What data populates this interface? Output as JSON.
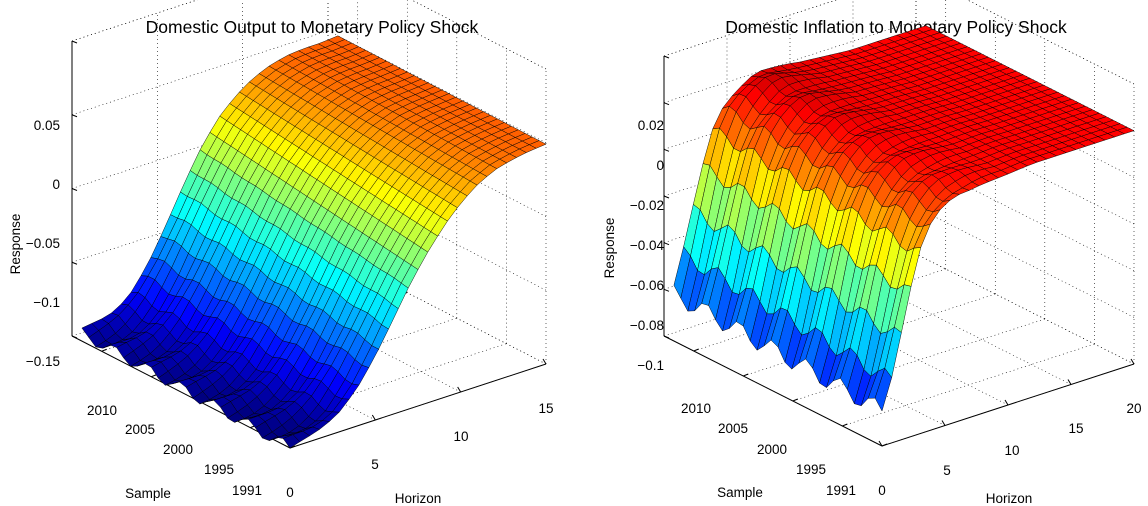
{
  "chart_data": [
    {
      "type": "surface",
      "title": "Domestic Output to Monetary Policy Shock",
      "xlabel": "Horizon",
      "ylabel": "Sample",
      "zlabel": "Response",
      "xticks": [
        "0",
        "5",
        "10",
        "15"
      ],
      "yticks": [
        "1991",
        "1995",
        "2000",
        "2005",
        "2010"
      ],
      "zticks": [
        "−0.15",
        "−0.1",
        "−0.05",
        "0",
        "0.05"
      ],
      "xlim": [
        0,
        15
      ],
      "ylim": [
        1991,
        2013
      ],
      "zlim": [
        -0.15,
        0.05
      ],
      "colormap": "jet",
      "grid": true,
      "horizon": [
        0,
        1,
        2,
        3,
        4,
        5,
        6,
        7,
        8,
        9,
        10,
        11,
        12,
        13,
        14,
        15
      ],
      "response_profile_early_sample": [
        -0.15,
        -0.149,
        -0.146,
        -0.138,
        -0.124,
        -0.106,
        -0.086,
        -0.066,
        -0.049,
        -0.034,
        -0.022,
        -0.013,
        -0.007,
        -0.004,
        -0.002,
        -0.001
      ],
      "response_profile_late_sample": [
        -0.145,
        -0.143,
        -0.138,
        -0.126,
        -0.108,
        -0.087,
        -0.065,
        -0.045,
        -0.029,
        -0.018,
        -0.01,
        -0.005,
        -0.002,
        -0.001,
        -0.001,
        0.0
      ]
    },
    {
      "type": "surface",
      "title": "Domestic Inflation to Monetary Policy Shock",
      "xlabel": "Horizon",
      "ylabel": "Sample",
      "zlabel": "Response",
      "xticks": [
        "0",
        "5",
        "10",
        "15",
        "20"
      ],
      "yticks": [
        "1991",
        "1995",
        "2000",
        "2005",
        "2010"
      ],
      "zticks": [
        "−0.1",
        "−0.08",
        "−0.06",
        "−0.04",
        "−0.02",
        "0",
        "0.02"
      ],
      "xlim": [
        0,
        20
      ],
      "ylim": [
        1991,
        2013
      ],
      "zlim": [
        -0.1,
        0.02
      ],
      "colormap": "jet",
      "grid": true,
      "horizon": [
        0,
        1,
        2,
        3,
        4,
        5,
        6,
        7,
        8,
        10,
        12,
        14,
        16,
        18,
        20
      ],
      "response_profile_early_sample": [
        -0.085,
        -0.07,
        -0.045,
        -0.024,
        -0.012,
        -0.006,
        -0.003,
        -0.002,
        -0.001,
        -0.001,
        0.0,
        0.0,
        0.0,
        0.0,
        0.0
      ],
      "response_profile_late_sample": [
        -0.08,
        -0.06,
        -0.036,
        -0.016,
        -0.005,
        0.0,
        0.004,
        0.005,
        0.004,
        0.002,
        0.001,
        0.0,
        0.0,
        0.0,
        0.0
      ]
    }
  ]
}
